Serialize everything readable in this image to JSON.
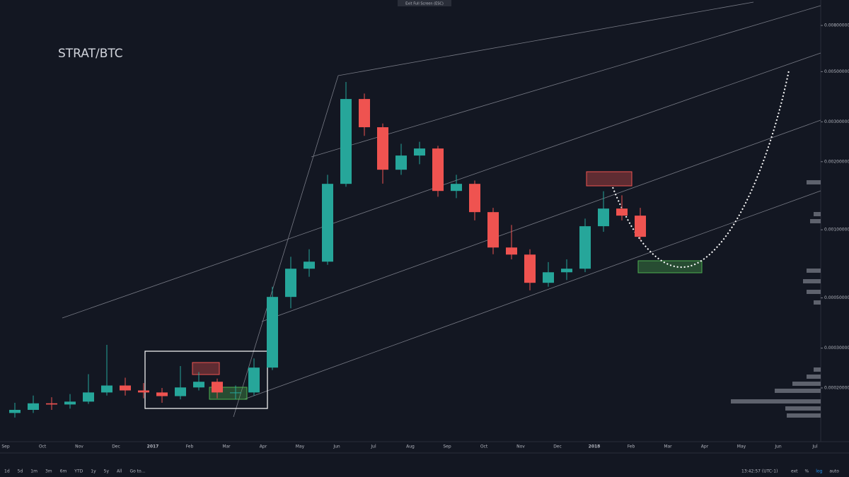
{
  "chart_data": {
    "type": "candlestick",
    "title": "STRAT/BTC",
    "categories": [
      "Sep",
      null,
      "Oct",
      null,
      "Nov",
      null,
      "Dec",
      null,
      "2017",
      null,
      "Feb",
      null,
      "Mar",
      null,
      "Apr",
      null,
      "May",
      null,
      "Jun",
      null,
      "Jul",
      null,
      "Aug",
      null,
      "Sep",
      null,
      "Oct",
      null,
      "Nov",
      null,
      "Dec",
      null,
      "2018",
      null,
      "Feb",
      null,
      "Mar",
      null,
      "Apr",
      null,
      "May",
      null,
      "Jun",
      null,
      "Jul"
    ],
    "open": [
      0.000155,
      0.00016,
      0.000171,
      0.000169,
      0.000174,
      0.000191,
      0.000205,
      0.000195,
      0.000191,
      0.000184,
      0.000201,
      0.000213,
      0.000191,
      0.000191,
      0.000246,
      0.000505,
      0.000673,
      0.000723,
      0.001596,
      0.003785,
      0.00284,
      0.001843,
      0.002129,
      0.002287,
      0.001485,
      0.001596,
      0.001197,
      0.000835,
      0.000777,
      0.000583,
      0.000649,
      0.000673,
      0.001037,
      0.001241,
      0.001155,
      null,
      null,
      null,
      null,
      null,
      null,
      null,
      null,
      null,
      null
    ],
    "high": [
      0.000172,
      0.000185,
      0.000182,
      0.000188,
      0.00023,
      0.00031,
      0.000222,
      0.00021,
      0.0002,
      0.00025,
      0.000235,
      0.00022,
      0.000205,
      0.00027,
      0.00056,
      0.00076,
      0.00082,
      0.00175,
      0.0045,
      0.004,
      0.00295,
      0.0024,
      0.00245,
      0.00235,
      0.00175,
      0.00165,
      0.00125,
      0.00105,
      0.00082,
      0.00072,
      0.00074,
      0.00112,
      0.00148,
      0.00142,
      0.00125,
      null,
      null,
      null,
      null,
      null,
      null,
      null,
      null,
      null,
      null
    ],
    "low": [
      0.000148,
      0.000155,
      0.00016,
      0.000162,
      0.00017,
      0.000185,
      0.000185,
      0.00018,
      0.000172,
      0.000178,
      0.000195,
      0.00018,
      0.000178,
      0.000185,
      0.00024,
      0.00045,
      0.00062,
      0.0007,
      0.00155,
      0.0026,
      0.0016,
      0.00175,
      0.00195,
      0.0014,
      0.00138,
      0.0011,
      0.00078,
      0.00074,
      0.00054,
      0.00056,
      0.0006,
      0.00065,
      0.00098,
      0.0011,
      0.0009,
      null,
      null,
      null,
      null,
      null,
      null,
      null,
      null,
      null,
      null
    ],
    "close": [
      0.00016,
      0.000171,
      0.000169,
      0.000174,
      0.000191,
      0.000205,
      0.000195,
      0.000191,
      0.000184,
      0.000201,
      0.000213,
      0.000191,
      0.000191,
      0.000246,
      0.000505,
      0.000673,
      0.000723,
      0.001596,
      0.003785,
      0.00284,
      0.001843,
      0.002129,
      0.002287,
      0.001485,
      0.001596,
      0.001197,
      0.000835,
      0.000777,
      0.000583,
      0.000649,
      0.000673,
      0.001037,
      0.001241,
      0.001155,
      0.000931,
      null,
      null,
      null,
      null,
      null,
      null,
      null,
      null,
      null,
      null
    ],
    "up_color": "#26a69a",
    "down_color": "#ef5350",
    "log": true,
    "grid": false,
    "ylim": [
      0.00012,
      0.01
    ],
    "yticks": [
      {
        "value": 0.0002,
        "label": "0.00020000"
      },
      {
        "value": 0.0003,
        "label": "0.00030000"
      },
      {
        "value": 0.0005,
        "label": "0.00050000"
      },
      {
        "value": 0.001,
        "label": "0.00100000"
      },
      {
        "value": 0.002,
        "label": "0.00200000"
      },
      {
        "value": 0.003,
        "label": "0.00300000"
      },
      {
        "value": 0.005,
        "label": "0.00500000"
      },
      {
        "value": 0.008,
        "label": "0.00800000"
      }
    ]
  },
  "ui": {
    "exit_fullscreen": "Exit Full Screen (ESC)",
    "range_buttons": [
      "1d",
      "5d",
      "1m",
      "3m",
      "6m",
      "YTD",
      "1y",
      "5y",
      "All",
      "Go to..."
    ],
    "clock": "13:42:57 (UTC-1)",
    "scale_buttons": [
      "ext",
      "%",
      "log",
      "auto"
    ]
  }
}
